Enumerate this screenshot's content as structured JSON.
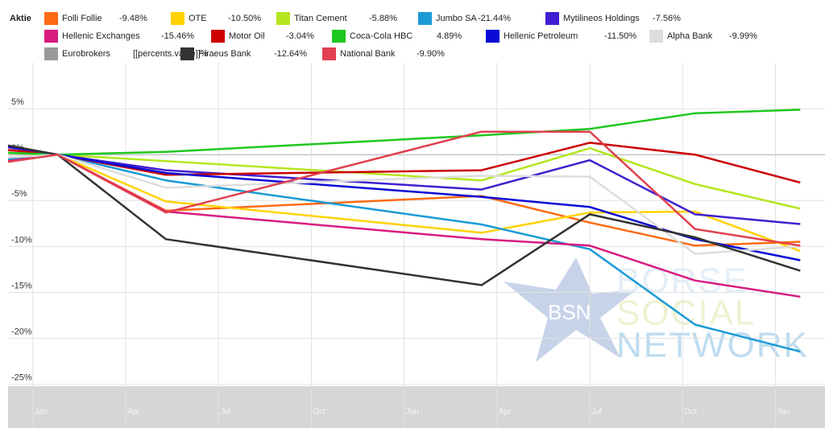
{
  "chart_data": {
    "type": "line",
    "legend_title": "Aktie",
    "x": [
      -0.8,
      0.8,
      4.3,
      14.5,
      18,
      21.4,
      24.8
    ],
    "xlim": [
      -0.8,
      25.6
    ],
    "xticks": [
      {
        "value": 0,
        "label": "Jan"
      },
      {
        "value": 3,
        "label": "Apr"
      },
      {
        "value": 6,
        "label": "Jul"
      },
      {
        "value": 9,
        "label": "Oct"
      },
      {
        "value": 12,
        "label": "Jan"
      },
      {
        "value": 15,
        "label": "Apr"
      },
      {
        "value": 18,
        "label": "Jul"
      },
      {
        "value": 21,
        "label": "Oct"
      },
      {
        "value": 24,
        "label": "Jan"
      }
    ],
    "ylim": [
      -25.2,
      10
    ],
    "yticks": [
      {
        "value": 5,
        "label": "5%"
      },
      {
        "value": 0,
        "label": "0%"
      },
      {
        "value": -5,
        "label": "-5%"
      },
      {
        "value": -10,
        "label": "-10%"
      },
      {
        "value": -15,
        "label": "-15%"
      },
      {
        "value": -20,
        "label": "-20%"
      },
      {
        "value": -25,
        "label": "-25%"
      }
    ],
    "grid": true,
    "watermark": {
      "logo": "BSN",
      "lines": [
        "BÖRSE",
        "SOCIAL",
        "NETWORK"
      ]
    },
    "series": [
      {
        "name": "Folli Follie",
        "color": "#ff6a13",
        "value_label": "-9.48%",
        "values": [
          0.2,
          0,
          -6.1,
          -4.5,
          -7.4,
          -9.9,
          -9.48
        ]
      },
      {
        "name": "OTE",
        "color": "#ffd200",
        "value_label": "-10.50%",
        "values": [
          -0.3,
          0,
          -5.1,
          -8.5,
          -6.3,
          -6.2,
          -10.5
        ]
      },
      {
        "name": "Titan Cement",
        "color": "#b5e61d",
        "value_label": "-5.88%",
        "values": [
          0.2,
          0,
          -0.7,
          -2.8,
          0.7,
          -3.2,
          -5.88
        ]
      },
      {
        "name": "Jumbo SA",
        "color": "#1a9ad6",
        "value_label": "-21.44%",
        "values": [
          -0.5,
          0,
          -2.8,
          -7.6,
          -10.3,
          -18.5,
          -21.44
        ]
      },
      {
        "name": "Mytilineos Holdings",
        "color": "#3f1fd1",
        "value_label": "-7.56%",
        "values": [
          0.8,
          0,
          -1.7,
          -3.8,
          -0.6,
          -6.5,
          -7.56
        ]
      },
      {
        "name": "Hellenic Exchanges",
        "color": "#d81b7f",
        "value_label": "-15.46%",
        "values": [
          -0.7,
          0,
          -6.2,
          -9.2,
          -9.9,
          -13.7,
          -15.46
        ]
      },
      {
        "name": "Motor Oil",
        "color": "#cc0000",
        "value_label": "-3.04%",
        "values": [
          0.5,
          0,
          -2.2,
          -1.7,
          1.3,
          0,
          -3.04
        ]
      },
      {
        "name": "Coca-Cola HBC",
        "color": "#1ec81e",
        "value_label": "4.89%",
        "values": [
          0.2,
          0,
          0.3,
          2.1,
          2.8,
          4.5,
          4.89
        ]
      },
      {
        "name": "Hellenic Petroleum",
        "color": "#0a0ad6",
        "value_label": "-11.50%",
        "values": [
          0.9,
          0,
          -2.0,
          -4.6,
          -5.7,
          -9.2,
          -11.5
        ]
      },
      {
        "name": "Alpha Bank",
        "color": "#dddddd",
        "value_label": "-9.99%",
        "values": [
          -0.3,
          0,
          -3.6,
          -2.3,
          -2.4,
          -10.8,
          -9.99
        ]
      },
      {
        "name": "Eurobrokers",
        "color": "#999999",
        "value_label": "[[percents.value]]%",
        "values": [
          null,
          null,
          null,
          null,
          null,
          null,
          null
        ]
      },
      {
        "name": "Piraeus Bank",
        "color": "#333333",
        "value_label": "-12.64%",
        "values": [
          1.0,
          0,
          -9.2,
          -14.2,
          -6.5,
          -9.0,
          -12.64
        ]
      },
      {
        "name": "National Bank",
        "color": "#e0404f",
        "value_label": "-9.90%",
        "values": [
          -0.8,
          0,
          -6.3,
          2.5,
          2.5,
          -8.1,
          -9.9
        ]
      }
    ]
  }
}
